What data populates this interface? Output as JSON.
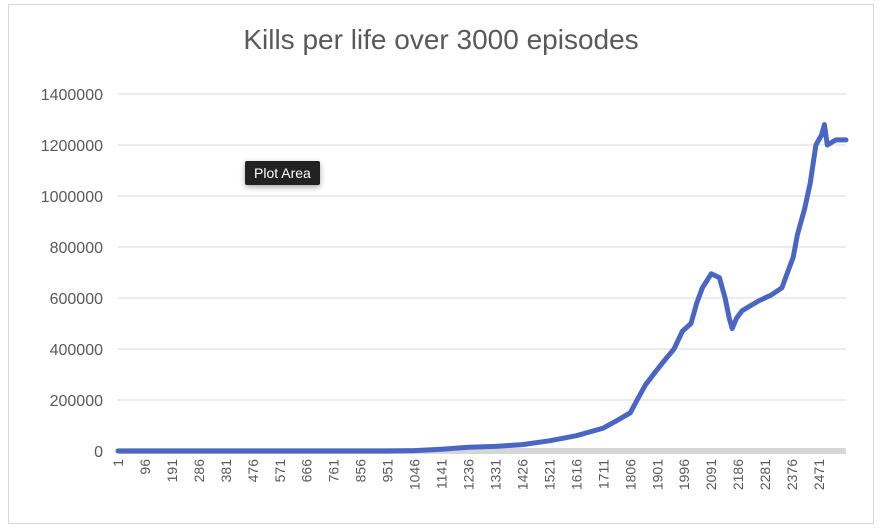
{
  "chart_data": {
    "type": "line",
    "title": "Kills per life over 3000 episodes",
    "xlabel": "",
    "ylabel": "",
    "ylim": [
      0,
      1400000
    ],
    "y_ticks": [
      "0",
      "200000",
      "400000",
      "600000",
      "800000",
      "1000000",
      "1200000",
      "1400000"
    ],
    "x_tick_labels": [
      "1",
      "96",
      "191",
      "286",
      "381",
      "476",
      "571",
      "666",
      "761",
      "856",
      "951",
      "1046",
      "1141",
      "1236",
      "1331",
      "1426",
      "1521",
      "1616",
      "1711",
      "1806",
      "1901",
      "1996",
      "2091",
      "2186",
      "2281",
      "2376",
      "2471"
    ],
    "x_range": [
      1,
      2566
    ],
    "grid": true,
    "series": [
      {
        "color": "#4a66c4",
        "points": [
          [
            1,
            0
          ],
          [
            951,
            0
          ],
          [
            1046,
            1500
          ],
          [
            1141,
            7000
          ],
          [
            1236,
            15000
          ],
          [
            1331,
            18000
          ],
          [
            1426,
            25000
          ],
          [
            1521,
            40000
          ],
          [
            1616,
            60000
          ],
          [
            1711,
            90000
          ],
          [
            1760,
            120000
          ],
          [
            1806,
            150000
          ],
          [
            1830,
            200000
          ],
          [
            1860,
            260000
          ],
          [
            1901,
            320000
          ],
          [
            1930,
            360000
          ],
          [
            1960,
            400000
          ],
          [
            1990,
            470000
          ],
          [
            2020,
            500000
          ],
          [
            2040,
            580000
          ],
          [
            2060,
            640000
          ],
          [
            2091,
            695000
          ],
          [
            2120,
            680000
          ],
          [
            2140,
            600000
          ],
          [
            2155,
            520000
          ],
          [
            2165,
            480000
          ],
          [
            2180,
            520000
          ],
          [
            2200,
            550000
          ],
          [
            2230,
            570000
          ],
          [
            2260,
            590000
          ],
          [
            2300,
            610000
          ],
          [
            2340,
            640000
          ],
          [
            2360,
            700000
          ],
          [
            2380,
            760000
          ],
          [
            2395,
            850000
          ],
          [
            2420,
            950000
          ],
          [
            2440,
            1050000
          ],
          [
            2460,
            1200000
          ],
          [
            2480,
            1240000
          ],
          [
            2490,
            1280000
          ],
          [
            2500,
            1200000
          ],
          [
            2530,
            1220000
          ],
          [
            2566,
            1220000
          ]
        ]
      }
    ]
  },
  "tooltip": {
    "label": "Plot Area"
  }
}
